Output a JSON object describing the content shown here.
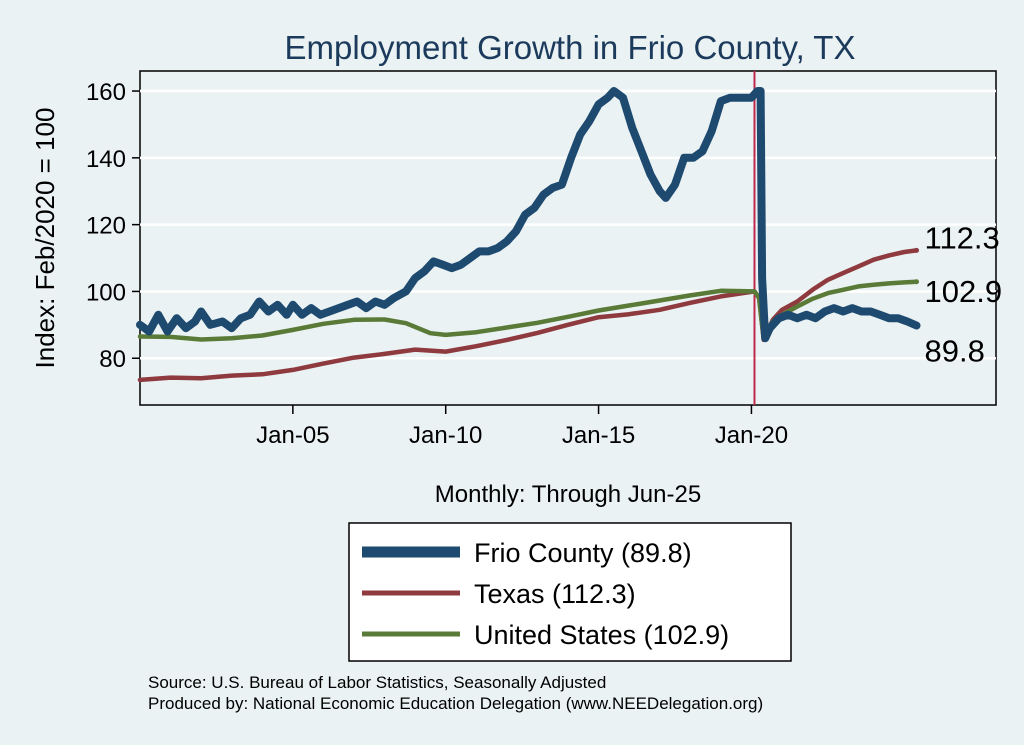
{
  "chart_data": {
    "type": "line",
    "title": "Employment Growth in Frio  County, TX",
    "ylabel": "Index: Feb/2020 = 100",
    "xlabel": "Monthly: Through Jun-25",
    "ylim": [
      66,
      166
    ],
    "xlim": [
      2000.0,
      2028.0
    ],
    "yticks": [
      80,
      100,
      120,
      140,
      160
    ],
    "xticks": [
      {
        "value": 2005.0,
        "label": "Jan-05"
      },
      {
        "value": 2010.0,
        "label": "Jan-10"
      },
      {
        "value": 2015.0,
        "label": "Jan-15"
      },
      {
        "value": 2020.0,
        "label": "Jan-20"
      }
    ],
    "reference_line": {
      "x": 2020.1,
      "color": "#c0284e"
    },
    "series": [
      {
        "name": "Frio  County (89.8)",
        "color": "#1e4a70",
        "end_label": "89.8",
        "points": [
          [
            2000.0,
            90
          ],
          [
            2000.3,
            88
          ],
          [
            2000.6,
            93
          ],
          [
            2000.9,
            88
          ],
          [
            2001.2,
            92
          ],
          [
            2001.5,
            89
          ],
          [
            2001.8,
            91
          ],
          [
            2002.0,
            94
          ],
          [
            2002.3,
            90
          ],
          [
            2002.7,
            91
          ],
          [
            2003.0,
            89
          ],
          [
            2003.3,
            92
          ],
          [
            2003.6,
            93
          ],
          [
            2003.9,
            97
          ],
          [
            2004.2,
            94
          ],
          [
            2004.5,
            96
          ],
          [
            2004.8,
            93
          ],
          [
            2005.0,
            96
          ],
          [
            2005.3,
            93
          ],
          [
            2005.6,
            95
          ],
          [
            2005.9,
            93
          ],
          [
            2006.2,
            94
          ],
          [
            2006.5,
            95
          ],
          [
            2006.8,
            96
          ],
          [
            2007.1,
            97
          ],
          [
            2007.4,
            95
          ],
          [
            2007.7,
            97
          ],
          [
            2008.0,
            96
          ],
          [
            2008.3,
            98
          ],
          [
            2008.7,
            100
          ],
          [
            2009.0,
            104
          ],
          [
            2009.3,
            106
          ],
          [
            2009.6,
            109
          ],
          [
            2009.9,
            108
          ],
          [
            2010.2,
            107
          ],
          [
            2010.5,
            108
          ],
          [
            2010.8,
            110
          ],
          [
            2011.1,
            112
          ],
          [
            2011.4,
            112
          ],
          [
            2011.7,
            113
          ],
          [
            2012.0,
            115
          ],
          [
            2012.3,
            118
          ],
          [
            2012.6,
            123
          ],
          [
            2012.9,
            125
          ],
          [
            2013.2,
            129
          ],
          [
            2013.5,
            131
          ],
          [
            2013.8,
            132
          ],
          [
            2014.1,
            140
          ],
          [
            2014.4,
            147
          ],
          [
            2014.7,
            151
          ],
          [
            2015.0,
            156
          ],
          [
            2015.3,
            158
          ],
          [
            2015.5,
            160
          ],
          [
            2015.8,
            158
          ],
          [
            2016.1,
            149
          ],
          [
            2016.4,
            142
          ],
          [
            2016.7,
            135
          ],
          [
            2017.0,
            130
          ],
          [
            2017.2,
            128
          ],
          [
            2017.5,
            132
          ],
          [
            2017.8,
            140
          ],
          [
            2018.1,
            140
          ],
          [
            2018.4,
            142
          ],
          [
            2018.7,
            148
          ],
          [
            2019.0,
            157
          ],
          [
            2019.3,
            158
          ],
          [
            2019.6,
            158
          ],
          [
            2019.9,
            158
          ],
          [
            2020.0,
            158
          ],
          [
            2020.2,
            160
          ],
          [
            2020.3,
            160
          ],
          [
            2020.35,
            104
          ],
          [
            2020.45,
            86
          ],
          [
            2020.6,
            89
          ],
          [
            2020.9,
            92
          ],
          [
            2021.2,
            93
          ],
          [
            2021.5,
            92
          ],
          [
            2021.8,
            93
          ],
          [
            2022.1,
            92
          ],
          [
            2022.4,
            94
          ],
          [
            2022.7,
            95
          ],
          [
            2023.0,
            94
          ],
          [
            2023.3,
            95
          ],
          [
            2023.6,
            94
          ],
          [
            2023.9,
            94
          ],
          [
            2024.2,
            93
          ],
          [
            2024.5,
            92
          ],
          [
            2024.8,
            92
          ],
          [
            2025.1,
            91
          ],
          [
            2025.4,
            89.8
          ]
        ]
      },
      {
        "name": "Texas (112.3)",
        "color": "#8e3a3e",
        "end_label": "112.3",
        "points": [
          [
            2000.0,
            73.5
          ],
          [
            2001.0,
            74.2
          ],
          [
            2002.0,
            74.0
          ],
          [
            2003.0,
            74.8
          ],
          [
            2004.0,
            75.2
          ],
          [
            2005.0,
            76.5
          ],
          [
            2006.0,
            78.4
          ],
          [
            2007.0,
            80.2
          ],
          [
            2008.0,
            81.3
          ],
          [
            2009.0,
            82.6
          ],
          [
            2010.0,
            82.0
          ],
          [
            2011.0,
            83.6
          ],
          [
            2012.0,
            85.5
          ],
          [
            2013.0,
            87.6
          ],
          [
            2014.0,
            90.0
          ],
          [
            2015.0,
            92.3
          ],
          [
            2016.0,
            93.2
          ],
          [
            2017.0,
            94.5
          ],
          [
            2018.0,
            96.6
          ],
          [
            2019.0,
            98.5
          ],
          [
            2020.1,
            100.0
          ],
          [
            2020.25,
            98.0
          ],
          [
            2020.4,
            85.5
          ],
          [
            2020.7,
            91.5
          ],
          [
            2021.0,
            94.5
          ],
          [
            2021.5,
            97.0
          ],
          [
            2022.0,
            100.5
          ],
          [
            2022.5,
            103.5
          ],
          [
            2023.0,
            105.5
          ],
          [
            2023.5,
            107.5
          ],
          [
            2024.0,
            109.5
          ],
          [
            2024.5,
            110.8
          ],
          [
            2025.0,
            111.8
          ],
          [
            2025.4,
            112.3
          ]
        ]
      },
      {
        "name": "United States (102.9)",
        "color": "#5a7a38",
        "end_label": "102.9",
        "points": [
          [
            2000.0,
            86.5
          ],
          [
            2001.0,
            86.4
          ],
          [
            2002.0,
            85.6
          ],
          [
            2003.0,
            86.0
          ],
          [
            2004.0,
            86.8
          ],
          [
            2005.0,
            88.5
          ],
          [
            2006.0,
            90.3
          ],
          [
            2007.0,
            91.5
          ],
          [
            2008.0,
            91.6
          ],
          [
            2008.7,
            90.5
          ],
          [
            2009.5,
            87.5
          ],
          [
            2010.0,
            87.0
          ],
          [
            2011.0,
            87.8
          ],
          [
            2012.0,
            89.2
          ],
          [
            2013.0,
            90.6
          ],
          [
            2014.0,
            92.4
          ],
          [
            2015.0,
            94.3
          ],
          [
            2016.0,
            95.8
          ],
          [
            2017.0,
            97.3
          ],
          [
            2018.0,
            98.8
          ],
          [
            2019.0,
            100.2
          ],
          [
            2020.1,
            100.0
          ],
          [
            2020.25,
            98.0
          ],
          [
            2020.4,
            86.0
          ],
          [
            2020.7,
            91.0
          ],
          [
            2021.0,
            93.0
          ],
          [
            2021.5,
            95.5
          ],
          [
            2022.0,
            97.8
          ],
          [
            2022.5,
            99.5
          ],
          [
            2023.0,
            100.5
          ],
          [
            2023.5,
            101.5
          ],
          [
            2024.0,
            102.0
          ],
          [
            2024.5,
            102.4
          ],
          [
            2025.0,
            102.7
          ],
          [
            2025.4,
            102.9
          ]
        ]
      }
    ],
    "legend": {
      "position": "bottom-center"
    }
  },
  "notes": {
    "source": "Source: U.S. Bureau of Labor Statistics, Seasonally Adjusted",
    "produced_by": "Produced by: National Economic Education Delegation (www.NEEDelegation.org)"
  }
}
